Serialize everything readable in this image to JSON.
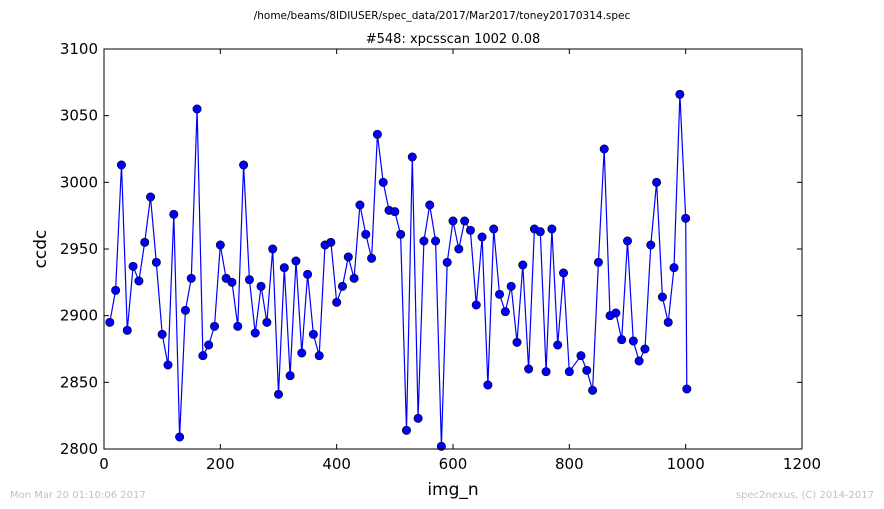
{
  "figure": {
    "subtitle": "/home/beams/8IDIUSER/spec_data/2017/Mar2017/toney20170314.spec",
    "footer_left": "Mon Mar 20 01:10:06 2017",
    "footer_right": "spec2nexus, (C) 2014-2017"
  },
  "chart_data": {
    "type": "line",
    "title": "#548: xpcsscan 1002 0.08",
    "xlabel": "img_n",
    "ylabel": "ccdc",
    "xlim": [
      0,
      1200
    ],
    "ylim": [
      2800,
      3100
    ],
    "xticks": [
      0,
      200,
      400,
      600,
      800,
      1000,
      1200
    ],
    "yticks": [
      2800,
      2850,
      2900,
      2950,
      3000,
      3050,
      3100
    ],
    "grid": false,
    "marker": "circle",
    "color": "#0000ff",
    "series": [
      {
        "x": [
          10,
          20,
          30,
          40,
          50,
          60,
          70,
          80,
          90,
          100,
          110,
          120,
          130,
          140,
          150,
          160,
          170,
          180,
          190,
          200,
          210,
          220,
          230,
          240,
          250,
          260,
          270,
          280,
          290,
          300,
          310,
          320,
          330,
          340,
          350,
          360,
          370,
          380,
          390,
          400,
          410,
          420,
          430,
          440,
          450,
          460,
          470,
          480,
          490,
          500,
          510,
          520,
          530,
          540,
          550,
          560,
          570,
          580,
          590,
          600,
          610,
          620,
          630,
          640,
          650,
          660,
          670,
          680,
          690,
          700,
          710,
          720,
          730,
          740,
          750,
          760,
          770,
          780,
          790,
          800,
          820,
          830,
          840,
          850,
          860,
          870,
          880,
          890,
          900,
          910,
          920,
          930,
          940,
          950,
          960,
          970,
          980,
          990,
          1000,
          1002
        ],
        "y": [
          2895,
          2919,
          3013,
          2889,
          2937,
          2926,
          2955,
          2989,
          2940,
          2886,
          2863,
          2976,
          2809,
          2904,
          2928,
          3055,
          2870,
          2878,
          2892,
          2953,
          2928,
          2925,
          2892,
          3013,
          2927,
          2887,
          2922,
          2895,
          2950,
          2841,
          2936,
          2855,
          2941,
          2872,
          2931,
          2886,
          2870,
          2953,
          2955,
          2910,
          2922,
          2944,
          2928,
          2983,
          2961,
          2943,
          3036,
          3000,
          2979,
          2978,
          2961,
          2814,
          3019,
          2823,
          2956,
          2983,
          2956,
          2802,
          2940,
          2971,
          2950,
          2971,
          2964,
          2908,
          2959,
          2848,
          2965,
          2916,
          2903,
          2922,
          2880,
          2938,
          2860,
          2965,
          2963,
          2858,
          2965,
          2878,
          2932,
          2858,
          2870,
          2859,
          2844,
          2940,
          3025,
          2900,
          2902,
          2882,
          2956,
          2881,
          2866,
          2875,
          2953,
          3000,
          2914,
          2895,
          2936,
          3066,
          2973,
          2845
        ]
      }
    ]
  }
}
